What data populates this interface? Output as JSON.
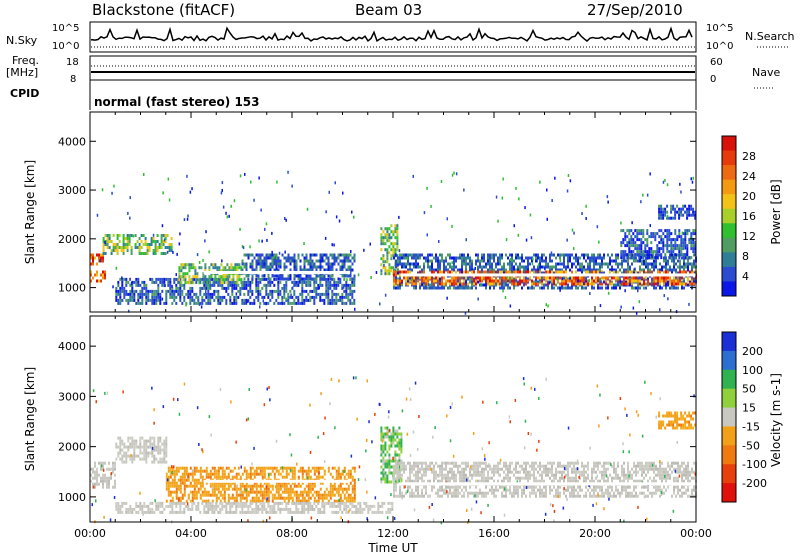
{
  "header": {
    "station": "Blackstone (fitACF)",
    "beam": "Beam 03",
    "date": "27/Sep/2010"
  },
  "panels": {
    "nsky_label": "N.Sky",
    "nsearch_label": "N.Search",
    "freq_label_top": "Freq.",
    "freq_label_bottom": "[MHz]",
    "nave_label": "Nave",
    "cpid_label": "CPID",
    "cpid_value": "normal (fast stereo) 153",
    "nsky_ticks": [
      "10^5",
      "10^0"
    ],
    "nsearch_ticks": [
      "10^5",
      "10^0"
    ],
    "freq_ticks": [
      "18",
      "8"
    ],
    "nave_ticks": [
      "60",
      "0"
    ]
  },
  "chart_data": [
    {
      "type": "heatmap",
      "title": "Power",
      "ylabel": "Slant Range [km]",
      "xlabel": "Time UT",
      "xticks": [
        "00:00",
        "04:00",
        "08:00",
        "12:00",
        "16:00",
        "20:00",
        "00:00"
      ],
      "yticks": [
        1000,
        2000,
        3000,
        4000
      ],
      "ylim": [
        500,
        4600
      ],
      "xlim_hours": [
        0,
        24
      ],
      "colorbar": {
        "label": "Power [dB]",
        "ticks": [
          4,
          8,
          12,
          16,
          20,
          24,
          28
        ],
        "colors": [
          "#0a17e6",
          "#2b4bd0",
          "#2f7e97",
          "#4f9d63",
          "#2fbf2f",
          "#a8cf2a",
          "#f2c316",
          "#f39a12",
          "#ee6a10",
          "#e63a0c",
          "#d8120a"
        ]
      },
      "bands": [
        {
          "t": [
            0.0,
            0.6
          ],
          "r": [
            1150,
            1350
          ],
          "level": "high"
        },
        {
          "t": [
            0.0,
            0.6
          ],
          "r": [
            1500,
            1700
          ],
          "level": "high"
        },
        {
          "t": [
            0.5,
            3.2
          ],
          "r": [
            1700,
            2100
          ],
          "level": "mid"
        },
        {
          "t": [
            1.0,
            10.5
          ],
          "r": [
            700,
            1200
          ],
          "level": "low"
        },
        {
          "t": [
            3.5,
            6.0
          ],
          "r": [
            1100,
            1500
          ],
          "level": "mid"
        },
        {
          "t": [
            6.0,
            10.5
          ],
          "r": [
            1200,
            1700
          ],
          "level": "low"
        },
        {
          "t": [
            11.5,
            12.2
          ],
          "r": [
            1300,
            2300
          ],
          "level": "mid"
        },
        {
          "t": [
            12.0,
            24.0
          ],
          "r": [
            1000,
            1700
          ],
          "level": "low"
        },
        {
          "t": [
            12.0,
            24.0
          ],
          "r": [
            1100,
            1350
          ],
          "level": "high"
        },
        {
          "t": [
            21.0,
            24.0
          ],
          "r": [
            1600,
            2200
          ],
          "level": "low"
        },
        {
          "t": [
            22.5,
            24.0
          ],
          "r": [
            2400,
            2700
          ],
          "level": "low"
        }
      ]
    },
    {
      "type": "heatmap",
      "title": "Velocity",
      "ylabel": "Slant Range [km]",
      "xlabel": "Time UT",
      "xticks": [
        "00:00",
        "04:00",
        "08:00",
        "12:00",
        "16:00",
        "20:00",
        "00:00"
      ],
      "yticks": [
        1000,
        2000,
        3000,
        4000
      ],
      "ylim": [
        500,
        4600
      ],
      "xlim_hours": [
        0,
        24
      ],
      "colorbar": {
        "label": "Velocity [m s-1]",
        "ticks": [
          200,
          100,
          50,
          15,
          -15,
          -50,
          -100,
          -200
        ],
        "colors": [
          "#1a2fd6",
          "#2b6fd0",
          "#2fb24f",
          "#8fd03c",
          "#c8c8c0",
          "#f2a018",
          "#f07a10",
          "#e8400c",
          "#e0100a"
        ]
      },
      "bands": [
        {
          "t": [
            0.0,
            1.0
          ],
          "r": [
            1200,
            1700
          ],
          "level": "ground"
        },
        {
          "t": [
            1.0,
            3.0
          ],
          "r": [
            1700,
            2200
          ],
          "level": "ground"
        },
        {
          "t": [
            3.0,
            10.5
          ],
          "r": [
            900,
            1600
          ],
          "level": "neg"
        },
        {
          "t": [
            1.0,
            12.0
          ],
          "r": [
            700,
            900
          ],
          "level": "ground"
        },
        {
          "t": [
            11.5,
            12.3
          ],
          "r": [
            1300,
            2400
          ],
          "level": "pos"
        },
        {
          "t": [
            12.0,
            24.0
          ],
          "r": [
            1000,
            1700
          ],
          "level": "ground"
        },
        {
          "t": [
            22.5,
            24.0
          ],
          "r": [
            2400,
            2700
          ],
          "level": "neg"
        }
      ]
    }
  ]
}
